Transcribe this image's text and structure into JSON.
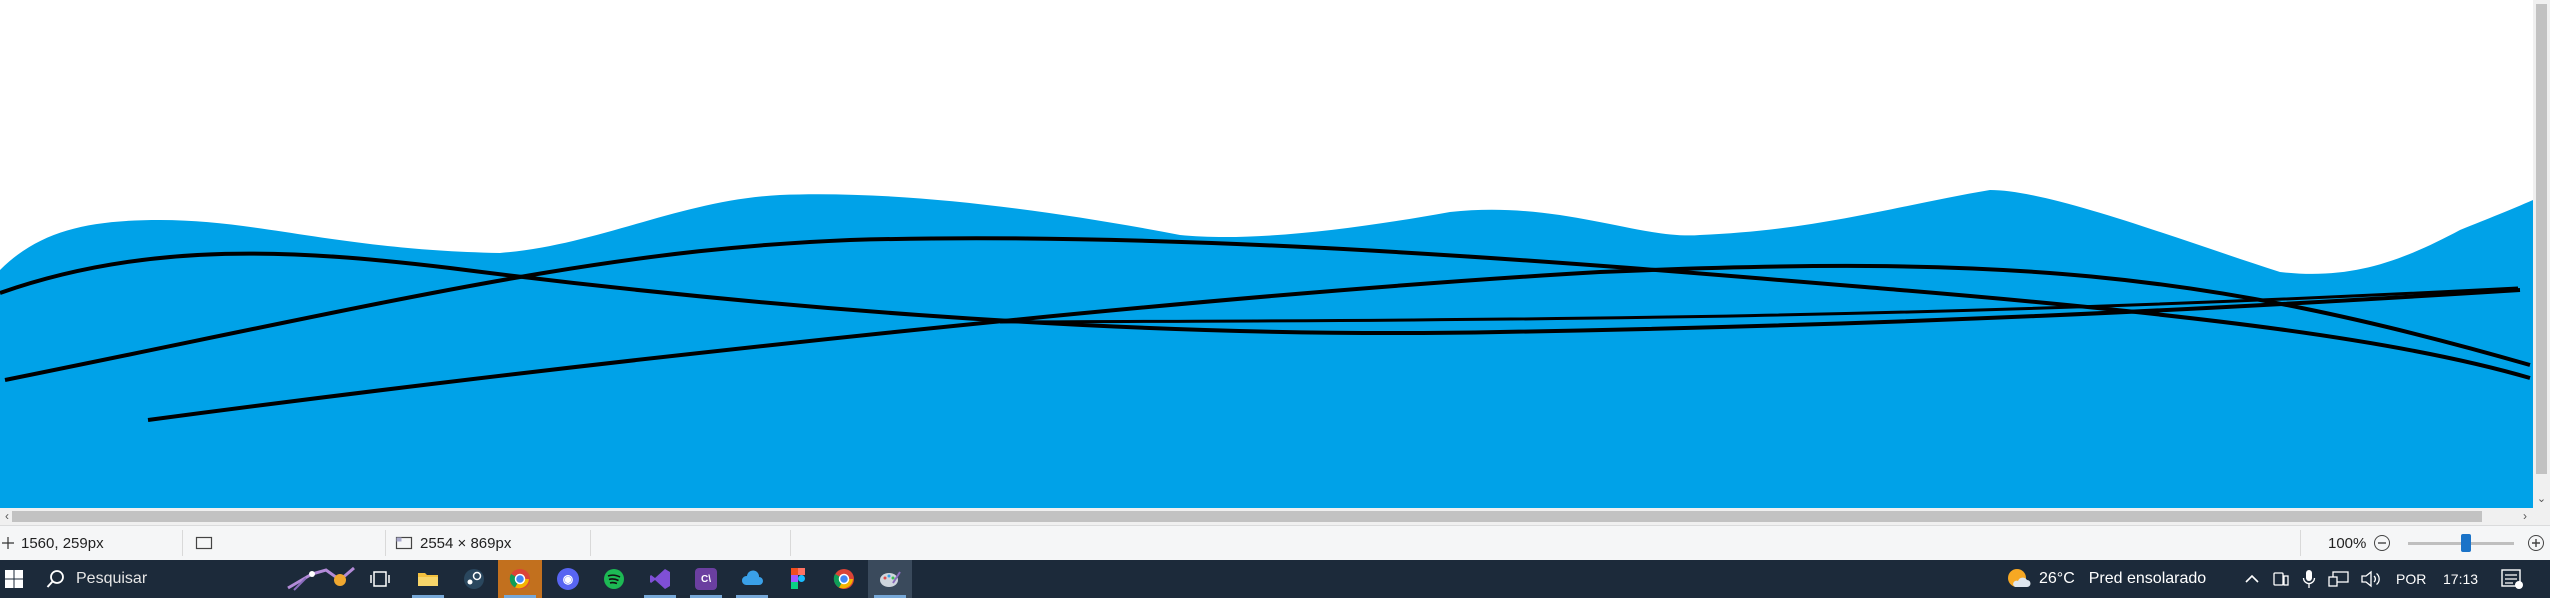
{
  "canvas": {
    "fill_color": "#00a2e8",
    "line_color": "#000000",
    "background": "#ffffff"
  },
  "statusbar": {
    "cursor_position": "1560, 259px",
    "image_size": "2554 × 869px",
    "zoom_level": "100%",
    "zoom_fraction": 0.55
  },
  "taskbar": {
    "search_placeholder": "Pesquisar",
    "weather_temp": "26°C",
    "weather_desc": "Pred ensolarado",
    "language": "POR",
    "time": "17:13",
    "apps": [
      {
        "name": "task-view",
        "icon": "task-view-icon"
      },
      {
        "name": "file-explorer",
        "icon": "folder-icon",
        "color": "#f3c03e"
      },
      {
        "name": "steam",
        "icon": "steam-icon",
        "color": "#2a475e"
      },
      {
        "name": "chrome-active",
        "icon": "chrome-icon",
        "color": "#e8a33c"
      },
      {
        "name": "discord",
        "icon": "discord-icon",
        "color": "#5865f2"
      },
      {
        "name": "spotify",
        "icon": "spotify-icon",
        "color": "#1db954"
      },
      {
        "name": "visual-studio",
        "icon": "visual-studio-icon",
        "color": "#7f4fd6"
      },
      {
        "name": "code-app",
        "icon": "code-icon",
        "color": "#6b3fa0"
      },
      {
        "name": "weather-app",
        "icon": "cloud-app-icon",
        "color": "#3aa0e8"
      },
      {
        "name": "figma",
        "icon": "figma-icon",
        "color": "#f24e1e"
      },
      {
        "name": "chrome",
        "icon": "chrome-icon",
        "color": "#ea4335"
      },
      {
        "name": "paint",
        "icon": "paint-icon",
        "color": "#9aa4b0"
      }
    ]
  }
}
